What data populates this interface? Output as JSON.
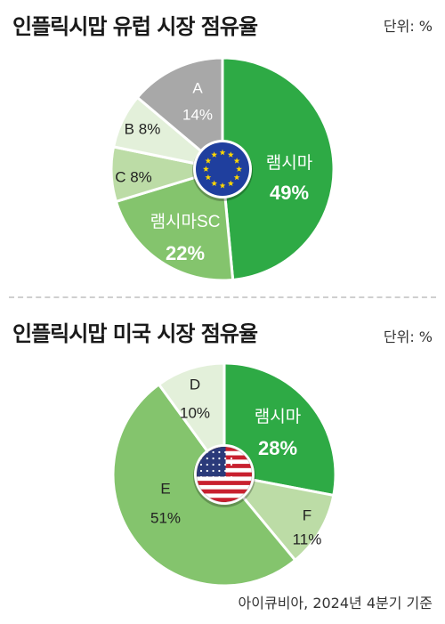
{
  "chart_data": [
    {
      "type": "pie",
      "title": "인플릭시맙 유럽 시장 점유율",
      "unit_label": "단위: %",
      "slices": [
        {
          "label": "램시마",
          "value": 49,
          "value_text": "49%",
          "color": "#2eaa45",
          "text_color": "#ffffff"
        },
        {
          "label": "램시마SC",
          "value": 22,
          "value_text": "22%",
          "color": "#84c46d",
          "text_color": "#ffffff"
        },
        {
          "label": "C",
          "value": 8,
          "value_text": "8%",
          "color": "#bcdca6",
          "text_color": "#222222"
        },
        {
          "label": "B",
          "value": 8,
          "value_text": "8%",
          "color": "#e3f0da",
          "text_color": "#222222"
        },
        {
          "label": "A",
          "value": 14,
          "value_text": "14%",
          "color": "#a8a8a8",
          "text_color": "#ffffff"
        }
      ]
    },
    {
      "type": "pie",
      "title": "인플릭시맙 미국 시장 점유율",
      "unit_label": "단위: %",
      "slices": [
        {
          "label": "램시마",
          "value": 28,
          "value_text": "28%",
          "color": "#2eaa45",
          "text_color": "#ffffff"
        },
        {
          "label": "F",
          "value": 11,
          "value_text": "11%",
          "color": "#bcdca6",
          "text_color": "#222222"
        },
        {
          "label": "E",
          "value": 51,
          "value_text": "51%",
          "color": "#84c46d",
          "text_color": "#222222"
        },
        {
          "label": "D",
          "value": 10,
          "value_text": "10%",
          "color": "#e3f0da",
          "text_color": "#222222"
        }
      ]
    }
  ],
  "source": "아이큐비아, 2024년 4분기 기준",
  "icons": {
    "europe": "eu-flag-icon",
    "usa": "us-flag-icon"
  }
}
